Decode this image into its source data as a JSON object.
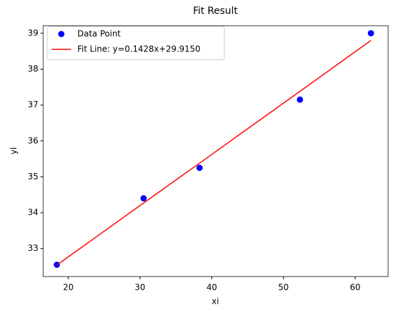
{
  "chart_data": {
    "type": "scatter",
    "title": "Fit Result",
    "x_label": "xi",
    "y_label": "yi",
    "x": [
      18.4,
      30.5,
      38.3,
      52.3,
      62.2
    ],
    "series": [
      {
        "name": "Data Point",
        "type": "scatter",
        "color": "#0000ff",
        "values": [
          32.55,
          34.4,
          35.25,
          37.15,
          39.0
        ]
      },
      {
        "name": "Fit Line: y=0.1428x+29.9150",
        "type": "line",
        "color": "#ff0000",
        "values": [
          32.54,
          34.27,
          35.38,
          37.38,
          38.8
        ]
      }
    ],
    "xlim": [
      16.5,
      64.6
    ],
    "ylim": [
      32.22,
      39.21
    ],
    "xticks": [
      20,
      30,
      40,
      50,
      60
    ],
    "yticks": [
      33,
      34,
      35,
      36,
      37,
      38,
      39
    ],
    "legend": "upper left"
  }
}
